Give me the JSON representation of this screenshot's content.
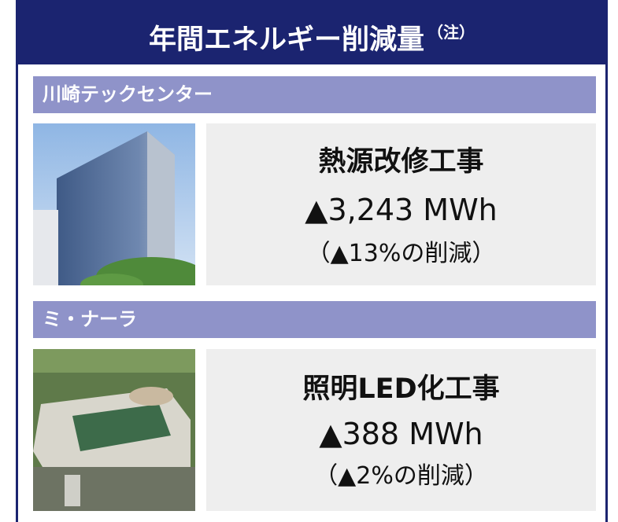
{
  "header": {
    "title": "年間エネルギー削減量",
    "note": "（注）"
  },
  "sections": [
    {
      "name": "川崎テックセンター",
      "project": "熱源改修工事",
      "amount": "▲3,243 MWh",
      "reduction": "（▲13%の削減）"
    },
    {
      "name": "ミ・ナーラ",
      "project": "照明LED化工事",
      "amount": "▲388 MWh",
      "reduction": "（▲2%の削減）"
    }
  ]
}
